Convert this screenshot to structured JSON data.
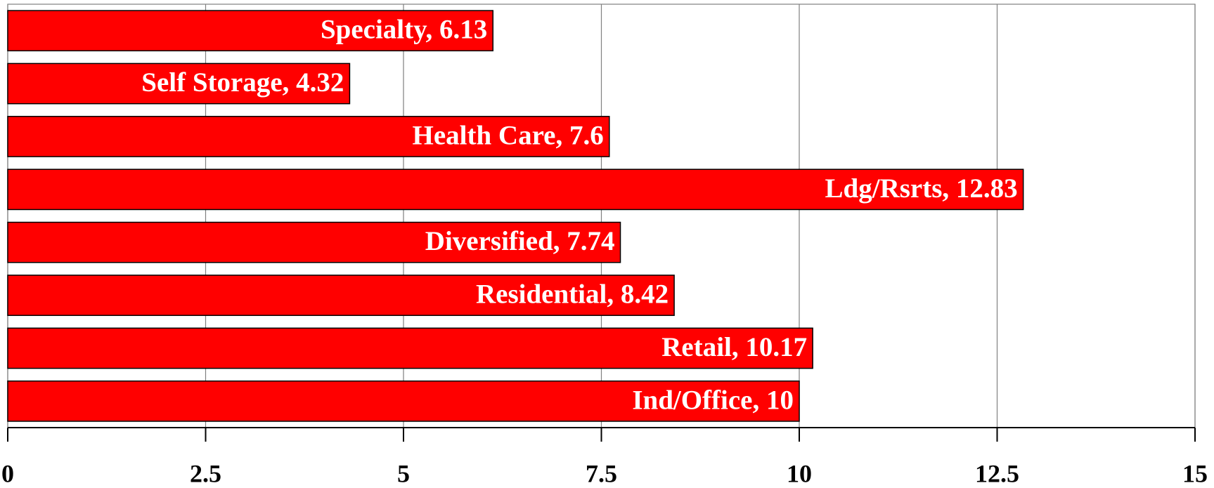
{
  "chart_data": {
    "type": "barh",
    "values": [
      6.13,
      4.32,
      7.6,
      12.83,
      7.74,
      8.42,
      10.17,
      10
    ],
    "value_labels": [
      "Specialty, 6.13",
      "Self Storage, 4.32",
      "Health Care, 7.6",
      "Ldg/Rsrts, 12.83",
      "Diversified, 7.74",
      "Residential, 8.42",
      "Retail, 10.17",
      "Ind/Office, 10"
    ],
    "color": "#ff0000",
    "xlim": [
      0,
      15
    ],
    "xticks": [
      0,
      2.5,
      5,
      7.5,
      10,
      12.5,
      15
    ],
    "grid": true
  }
}
